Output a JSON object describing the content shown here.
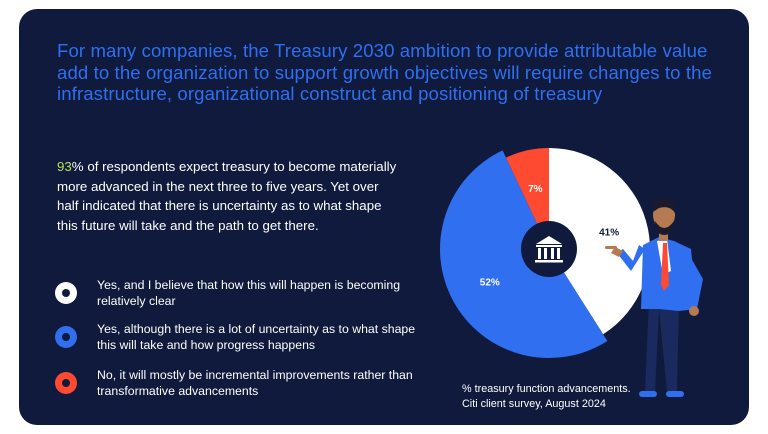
{
  "headline": "For many companies, the Treasury 2030 ambition to provide attributable value add to the organization to support growth objectives will require changes to the infrastructure, organizational construct and positioning of treasury",
  "intro": {
    "highlight": "93",
    "text": "% of respondents expect treasury to become materially more advanced in the next three to five years. Yet over half indicated that there is uncertainty as to what shape this future will take and the path to get there."
  },
  "legend": [
    {
      "label": "Yes, and I believe that how this will happen is becoming relatively clear",
      "color": "#ffffff"
    },
    {
      "label": "Yes, although there is a lot of uncertainty as to what shape this will take and how progress happens",
      "color": "#2f6ff0"
    },
    {
      "label": "No, it will mostly be incremental improvements rather than transformative advancements",
      "color": "#ff4a32"
    }
  ],
  "chart_data": {
    "type": "pie",
    "center_icon": "bank-building-icon",
    "slices": [
      {
        "label": "41%",
        "value": 41,
        "color": "#ffffff",
        "label_color": "#0f1a3c"
      },
      {
        "label": "52%",
        "value": 52,
        "color": "#2f6ff0",
        "label_color": "#ffffff"
      },
      {
        "label": "7%",
        "value": 7,
        "color": "#ff4a32",
        "label_color": "#ffffff"
      }
    ]
  },
  "caption": {
    "line1": "% treasury function advancements.",
    "line2": "Citi client survey, August 2024"
  },
  "figure": {
    "name": "businessman-pointing-illustration"
  }
}
